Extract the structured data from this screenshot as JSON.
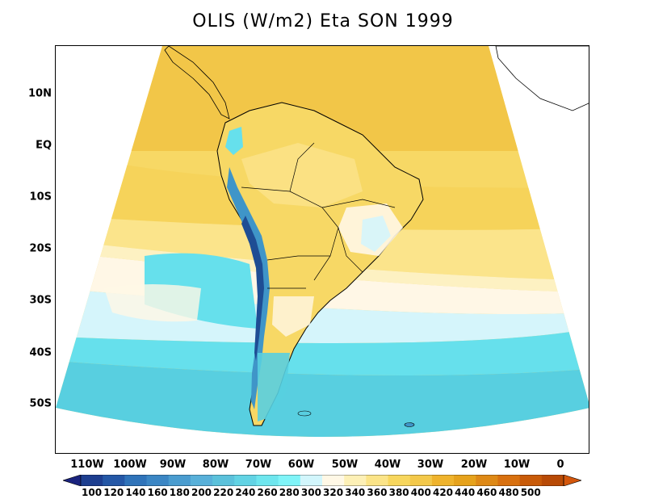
{
  "title": "OLIS (W/m2) Eta SON 1999",
  "lat_labels": [
    "10N",
    "EQ",
    "10S",
    "20S",
    "30S",
    "40S",
    "50S"
  ],
  "lon_labels": [
    "110W",
    "100W",
    "90W",
    "80W",
    "70W",
    "60W",
    "50W",
    "40W",
    "30W",
    "20W",
    "10W",
    "0"
  ],
  "colorbar": {
    "labels": [
      "100",
      "120",
      "140",
      "160",
      "180",
      "200",
      "220",
      "240",
      "260",
      "280",
      "300",
      "320",
      "340",
      "360",
      "380",
      "400",
      "420",
      "440",
      "460",
      "480",
      "500"
    ],
    "colors": [
      "#1d3e8f",
      "#2457a6",
      "#2f73b9",
      "#3b86c4",
      "#4a9ccf",
      "#58b0d9",
      "#5bc1db",
      "#62d3e4",
      "#6ee6ee",
      "#7ff4f8",
      "#d2f6fc",
      "#fff8e6",
      "#fdf0b6",
      "#fbe488",
      "#f7d65d",
      "#f3c84a",
      "#efb32c",
      "#e6a21c",
      "#de8916",
      "#d8700f",
      "#c85a08",
      "#b84a06"
    ],
    "arrow_left_color": "#1a237e",
    "arrow_right_color": "#d4570c"
  },
  "legend_colors": {
    "yellow_dark": "#f2c648",
    "yellow_mid": "#f7d865",
    "yellow_light": "#fbe48b",
    "cream": "#fdf1c2",
    "white_cream": "#fff7e6",
    "pale_blue": "#d5f5fb",
    "cyan": "#66e0ec",
    "teal": "#58cfe0",
    "blue": "#3f95c8",
    "navy": "#1e4d94"
  }
}
